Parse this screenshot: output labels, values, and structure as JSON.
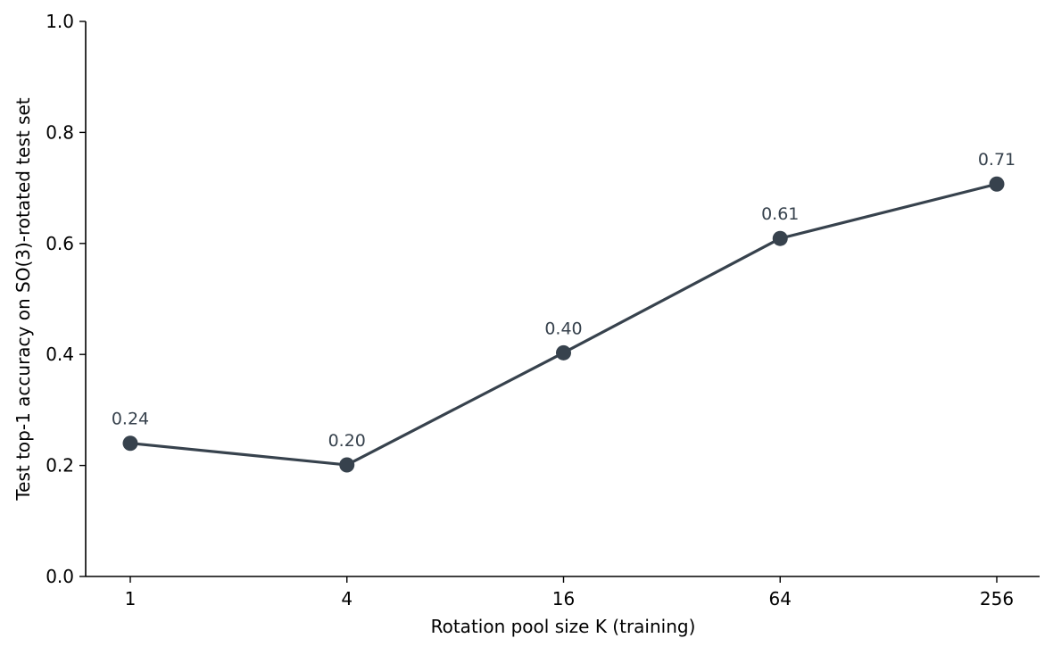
{
  "chart_data": {
    "type": "line",
    "categories": [
      "1",
      "4",
      "16",
      "64",
      "256"
    ],
    "x": [
      1,
      4,
      16,
      64,
      256
    ],
    "x_scale": "log2",
    "series": [
      {
        "values": [
          0.24,
          0.201,
          0.403,
          0.609,
          0.707
        ],
        "data_labels": [
          "0.24",
          "0.20",
          "0.40",
          "0.61",
          "0.71"
        ]
      }
    ],
    "title": "",
    "xlabel": "Rotation pool size K (training)",
    "ylabel": "Test top-1 accuracy on SO(3)-rotated test set",
    "ylim": [
      0,
      1
    ],
    "yticks": [
      0.0,
      0.2,
      0.4,
      0.6,
      0.8,
      1.0
    ],
    "ytick_labels": [
      "0.0",
      "0.2",
      "0.4",
      "0.6",
      "0.8",
      "1.0"
    ],
    "grid": false,
    "legend": "none",
    "colors": {
      "line": "#37424d",
      "axis": "#000000"
    }
  }
}
